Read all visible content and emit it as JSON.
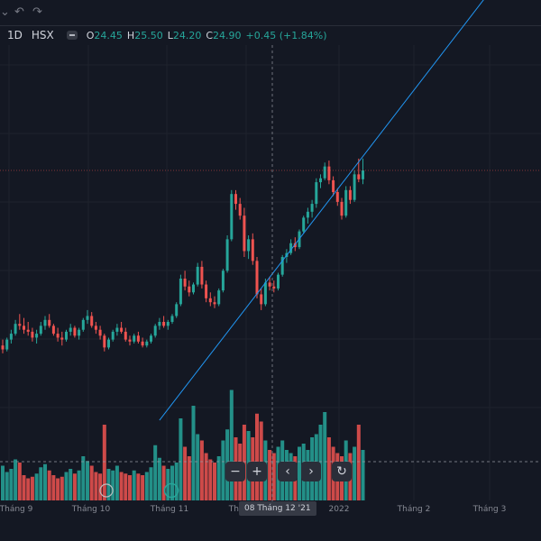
{
  "toolbar": {
    "undo_icon": "undo-icon",
    "redo_icon": "redo-icon"
  },
  "header": {
    "interval": "1D",
    "exchange": "HSX",
    "open_label": "O",
    "open": "24.45",
    "high_label": "H",
    "high": "25.50",
    "low_label": "L",
    "low": "24.20",
    "close_label": "C",
    "close": "24.90",
    "change": "+0.45 (+1.84%)"
  },
  "crosshair_date": "08 Tháng 12 '21",
  "nav": {
    "zoom_out": "−",
    "zoom_in": "+",
    "scroll_left": "‹",
    "scroll_right": "›",
    "reset": "↻"
  },
  "colors": {
    "up": "#26a69a",
    "down": "#ef5350",
    "trendline": "#2196f3",
    "background": "#141823"
  },
  "chart_data": {
    "type": "candlestick",
    "xlabels": [
      "Tháng 9",
      "Tháng 10",
      "Tháng 11",
      "Tháng 12",
      "2022",
      "Tháng 2",
      "Tháng 3"
    ],
    "last_price": 24.9,
    "ohlc": [
      [
        16.0,
        16.3,
        15.6,
        15.8
      ],
      [
        15.8,
        16.4,
        15.7,
        16.3
      ],
      [
        16.3,
        16.8,
        16.1,
        16.6
      ],
      [
        16.6,
        17.3,
        16.5,
        17.1
      ],
      [
        17.1,
        17.6,
        16.8,
        17.0
      ],
      [
        17.0,
        17.4,
        16.6,
        16.8
      ],
      [
        16.8,
        17.2,
        16.5,
        16.7
      ],
      [
        16.7,
        16.9,
        16.2,
        16.4
      ],
      [
        16.4,
        16.8,
        16.1,
        16.6
      ],
      [
        16.6,
        17.2,
        16.5,
        17.0
      ],
      [
        17.0,
        17.5,
        16.8,
        17.3
      ],
      [
        17.3,
        17.6,
        16.9,
        17.0
      ],
      [
        17.0,
        17.1,
        16.5,
        16.6
      ],
      [
        16.6,
        16.9,
        16.2,
        16.4
      ],
      [
        16.4,
        16.7,
        16.0,
        16.3
      ],
      [
        16.3,
        16.8,
        16.2,
        16.7
      ],
      [
        16.7,
        17.1,
        16.5,
        16.9
      ],
      [
        16.9,
        17.0,
        16.4,
        16.5
      ],
      [
        16.5,
        16.9,
        16.3,
        16.8
      ],
      [
        16.8,
        17.4,
        16.7,
        17.3
      ],
      [
        17.3,
        17.8,
        17.1,
        17.5
      ],
      [
        17.5,
        17.7,
        16.9,
        17.0
      ],
      [
        17.0,
        17.2,
        16.6,
        16.8
      ],
      [
        16.8,
        17.0,
        16.3,
        16.5
      ],
      [
        16.5,
        16.6,
        15.7,
        15.9
      ],
      [
        15.9,
        16.4,
        15.8,
        16.3
      ],
      [
        16.3,
        16.8,
        16.2,
        16.7
      ],
      [
        16.7,
        17.1,
        16.5,
        16.9
      ],
      [
        16.9,
        17.2,
        16.6,
        16.7
      ],
      [
        16.7,
        16.9,
        16.2,
        16.3
      ],
      [
        16.3,
        16.5,
        16.0,
        16.2
      ],
      [
        16.2,
        16.6,
        16.1,
        16.5
      ],
      [
        16.5,
        16.7,
        16.1,
        16.2
      ],
      [
        16.2,
        16.4,
        15.9,
        16.0
      ],
      [
        16.0,
        16.3,
        15.9,
        16.2
      ],
      [
        16.2,
        16.6,
        16.1,
        16.5
      ],
      [
        16.5,
        17.1,
        16.4,
        17.0
      ],
      [
        17.0,
        17.4,
        16.8,
        17.2
      ],
      [
        17.2,
        17.5,
        16.9,
        17.0
      ],
      [
        17.0,
        17.3,
        16.8,
        17.2
      ],
      [
        17.2,
        17.6,
        17.1,
        17.5
      ],
      [
        17.5,
        18.2,
        17.4,
        18.1
      ],
      [
        18.1,
        19.6,
        18.0,
        19.4
      ],
      [
        19.4,
        19.8,
        18.8,
        19.0
      ],
      [
        19.0,
        19.3,
        18.5,
        18.7
      ],
      [
        18.7,
        19.2,
        18.6,
        19.1
      ],
      [
        19.1,
        20.2,
        19.0,
        20.0
      ],
      [
        20.0,
        20.3,
        18.9,
        19.1
      ],
      [
        19.1,
        19.3,
        18.2,
        18.4
      ],
      [
        18.4,
        18.7,
        18.0,
        18.2
      ],
      [
        18.2,
        18.5,
        17.9,
        18.1
      ],
      [
        18.1,
        18.9,
        18.0,
        18.8
      ],
      [
        18.8,
        19.9,
        18.7,
        19.8
      ],
      [
        19.8,
        21.6,
        19.7,
        21.4
      ],
      [
        21.4,
        23.9,
        21.3,
        23.7
      ],
      [
        23.7,
        23.9,
        22.9,
        23.2
      ],
      [
        23.2,
        23.5,
        22.4,
        22.6
      ],
      [
        22.6,
        23.0,
        20.5,
        20.8
      ],
      [
        20.8,
        21.6,
        20.4,
        21.4
      ],
      [
        21.4,
        21.7,
        20.1,
        20.3
      ],
      [
        20.3,
        20.5,
        18.4,
        18.6
      ],
      [
        18.6,
        18.9,
        17.8,
        18.1
      ],
      [
        18.1,
        19.4,
        18.0,
        19.2
      ],
      [
        19.2,
        19.5,
        18.8,
        19.0
      ],
      [
        19.0,
        19.3,
        18.7,
        18.9
      ],
      [
        18.9,
        19.7,
        18.8,
        19.6
      ],
      [
        19.6,
        20.6,
        19.5,
        20.5
      ],
      [
        20.5,
        20.9,
        20.2,
        20.7
      ],
      [
        20.7,
        21.4,
        20.6,
        21.2
      ],
      [
        21.2,
        21.5,
        20.8,
        21.0
      ],
      [
        21.0,
        21.9,
        20.9,
        21.8
      ],
      [
        21.8,
        22.6,
        21.7,
        22.5
      ],
      [
        22.5,
        23.0,
        22.2,
        22.8
      ],
      [
        22.8,
        23.4,
        22.5,
        23.2
      ],
      [
        23.2,
        24.5,
        23.0,
        24.3
      ],
      [
        24.3,
        24.7,
        24.0,
        24.5
      ],
      [
        24.5,
        25.3,
        24.4,
        25.1
      ],
      [
        25.1,
        25.4,
        24.2,
        24.4
      ],
      [
        24.4,
        24.6,
        23.6,
        23.8
      ],
      [
        23.8,
        24.0,
        23.1,
        23.3
      ],
      [
        23.3,
        23.5,
        22.4,
        22.6
      ],
      [
        22.6,
        24.1,
        22.5,
        23.9
      ],
      [
        23.9,
        24.1,
        23.2,
        23.4
      ],
      [
        23.4,
        24.9,
        23.3,
        24.7
      ],
      [
        24.7,
        25.5,
        24.3,
        24.45
      ],
      [
        24.45,
        25.5,
        24.2,
        24.9
      ]
    ],
    "volume_up": [
      true,
      true,
      true,
      true,
      false,
      false,
      false,
      false,
      true,
      true,
      true,
      false,
      false,
      false,
      false,
      true,
      true,
      false,
      true,
      true,
      true,
      false,
      false,
      false,
      false,
      true,
      true,
      true,
      false,
      false,
      false,
      true,
      false,
      false,
      true,
      true,
      true,
      true,
      false,
      true,
      true,
      true,
      true,
      false,
      false,
      true,
      true,
      false,
      false,
      false,
      false,
      true,
      true,
      true,
      true,
      false,
      false,
      false,
      true,
      false,
      false,
      false,
      true,
      false,
      false,
      true,
      true,
      true,
      true,
      false,
      true,
      true,
      true,
      true,
      true,
      true,
      true,
      false,
      false,
      false,
      false,
      true,
      false,
      true,
      false,
      true
    ],
    "volume": [
      22,
      18,
      20,
      26,
      24,
      16,
      14,
      15,
      17,
      21,
      23,
      19,
      16,
      14,
      15,
      18,
      20,
      17,
      19,
      28,
      25,
      22,
      18,
      17,
      48,
      20,
      19,
      22,
      18,
      17,
      16,
      19,
      17,
      16,
      18,
      21,
      35,
      27,
      22,
      20,
      22,
      24,
      52,
      34,
      28,
      60,
      42,
      38,
      30,
      26,
      24,
      28,
      38,
      45,
      70,
      40,
      36,
      48,
      44,
      40,
      55,
      50,
      38,
      32,
      30,
      34,
      38,
      32,
      30,
      28,
      34,
      36,
      32,
      40,
      42,
      48,
      56,
      40,
      34,
      30,
      28,
      38,
      30,
      34,
      48,
      32
    ],
    "trendline": {
      "from": {
        "bar": 37,
        "price": 12.2
      },
      "to": {
        "bar": 115,
        "price": 34.0
      }
    }
  }
}
